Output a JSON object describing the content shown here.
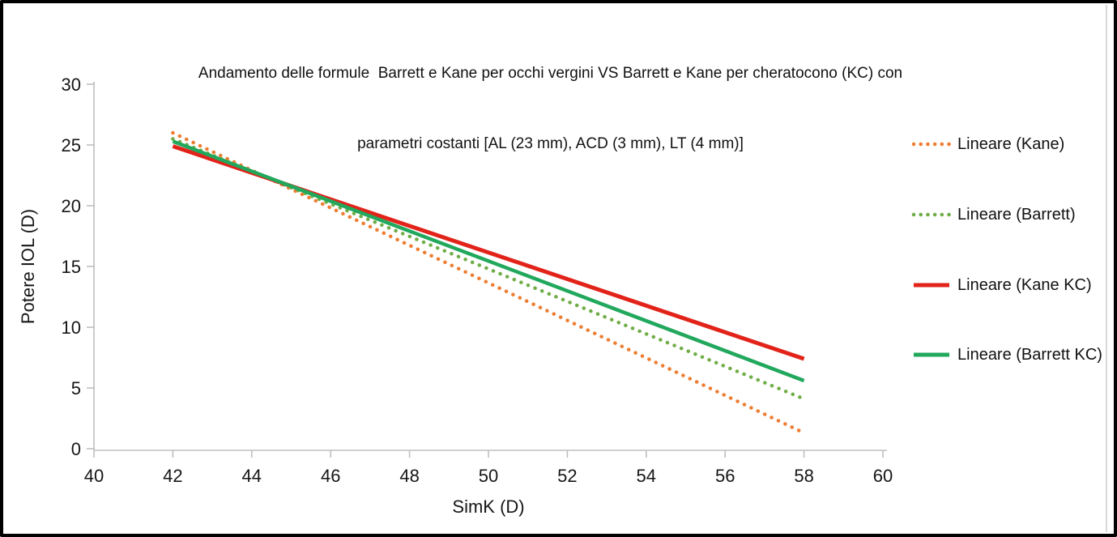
{
  "frame": {
    "background": "#ffffff",
    "border_color": "#000000"
  },
  "title": {
    "line1": "Andamento delle formule  Barrett e Kane per occhi vergini VS Barrett e Kane per cheratocono (KC) con",
    "line2": "parametri costanti [AL (23 mm), ACD (3 mm), LT (4 mm)]"
  },
  "chart_data": {
    "type": "line",
    "title": "Andamento delle formule Barrett e Kane per occhi vergini VS Barrett e Kane per cheratocono (KC) con parametri costanti [AL (23 mm), ACD (3 mm), LT (4 mm)]",
    "xlabel": "SimK (D)",
    "ylabel": "Potere IOL (D)",
    "xlim": [
      40,
      60
    ],
    "ylim": [
      0,
      30
    ],
    "x_ticks": [
      40,
      42,
      44,
      46,
      48,
      50,
      52,
      54,
      56,
      58,
      60
    ],
    "y_ticks": [
      0,
      5,
      10,
      15,
      20,
      25,
      30
    ],
    "grid": false,
    "axis_color": "#bfbfbf",
    "legend_position": "right",
    "x": [
      42,
      58
    ],
    "series": [
      {
        "name": "Lineare (Kane)",
        "style": "dotted",
        "color": "#ED7D31",
        "stroke_width": 4.5,
        "values": [
          26.0,
          1.3
        ]
      },
      {
        "name": "Lineare (Barrett)",
        "style": "dotted",
        "color": "#70AD47",
        "stroke_width": 4.5,
        "values": [
          25.5,
          4.1
        ]
      },
      {
        "name": "Lineare (Kane KC)",
        "style": "solid",
        "color": "#E2231A",
        "stroke_width": 5,
        "values": [
          24.9,
          7.4
        ]
      },
      {
        "name": "Lineare (Barrett KC)",
        "style": "solid",
        "color": "#21A85C",
        "stroke_width": 4.5,
        "values": [
          25.3,
          5.6
        ]
      }
    ]
  },
  "legend": {
    "row_tops": [
      160,
      247,
      334,
      420
    ]
  },
  "layout_note": ""
}
